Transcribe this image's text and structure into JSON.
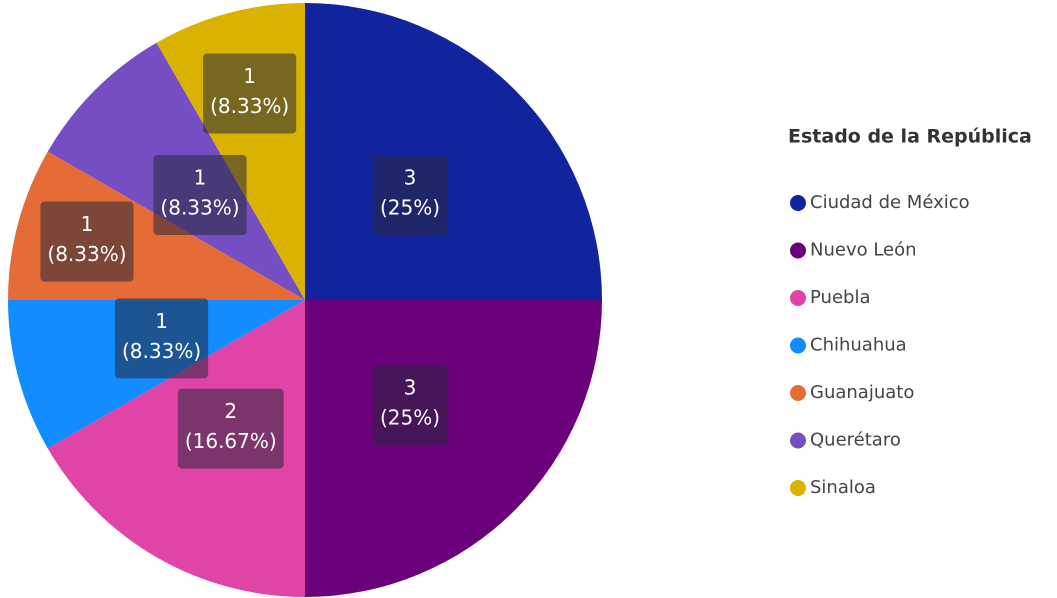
{
  "chart_data": {
    "type": "pie",
    "legend_title": "Estado de la República",
    "legend": "right",
    "categories": [
      "Ciudad de México",
      "Nuevo León",
      "Puebla",
      "Chihuahua",
      "Guanajuato",
      "Querétaro",
      "Sinaloa"
    ],
    "values": [
      3,
      3,
      2,
      1,
      1,
      1,
      1
    ],
    "percentages": [
      25,
      25,
      16.67,
      8.33,
      8.33,
      8.33,
      8.33
    ],
    "percentage_labels": [
      "(25%)",
      "(25%)",
      "(16.67%)",
      "(8.33%)",
      "(8.33%)",
      "(8.33%)",
      "(8.33%)"
    ],
    "colors": [
      "#12239e",
      "#6b007b",
      "#e044a7",
      "#118dff",
      "#e66c37",
      "#744ec2",
      "#d9b300"
    ]
  }
}
